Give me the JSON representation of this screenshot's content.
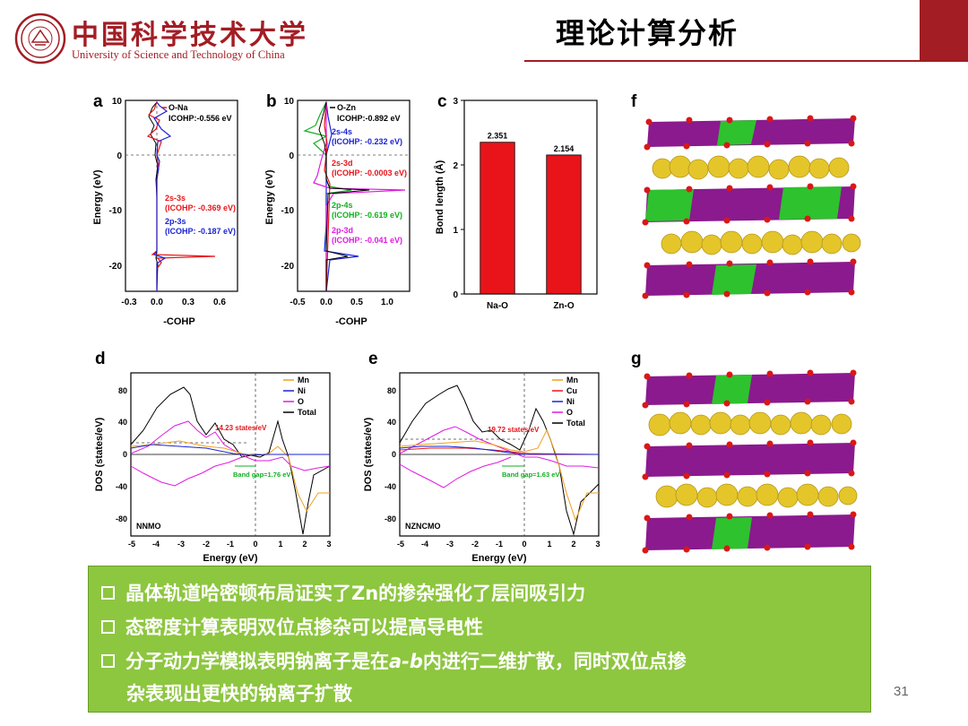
{
  "header": {
    "page_title": "理论计算分析",
    "logo_cn": "中国科学技术大学",
    "logo_en": "University of Science and Technology of China",
    "accent_color": "#a31d24"
  },
  "panels": {
    "a": {
      "letter": "a",
      "legend": "O-Na",
      "icohp": "ICOHP:-0.556 eV",
      "ann1_title": "2s-3s",
      "ann1_val": "(ICOHP: -0.369 eV)",
      "ann2_title": "2p-3s",
      "ann2_val": "(ICOHP: -0.187 eV)",
      "ylabel": "Energy (eV)",
      "xlabel": "-COHP",
      "xticks": [
        "-0.3",
        "0.0",
        "0.3",
        "0.6"
      ],
      "yticks": [
        "10",
        "0",
        "-10",
        "-20"
      ]
    },
    "b": {
      "letter": "b",
      "legend": "O-Zn",
      "icohp": "ICOHP:-0.892 eV",
      "ann1_title": "2s-4s",
      "ann1_val": "(ICOHP: -0.232 eV)",
      "ann2_title": "2s-3d",
      "ann2_val": "(ICOHP: -0.0003 eV)",
      "ann3_title": "2p-4s",
      "ann3_val": "(ICOHP: -0.619 eV)",
      "ann4_title": "2p-3d",
      "ann4_val": "(ICOHP: -0.041 eV)",
      "ylabel": "Energy (eV)",
      "xlabel": "-COHP",
      "xticks": [
        "-0.5",
        "0.0",
        "0.5",
        "1.0"
      ],
      "yticks": [
        "10",
        "0",
        "-10",
        "-20"
      ]
    },
    "c": {
      "letter": "c",
      "ylabel": "Bond length (Å)",
      "yticks": [
        "0",
        "1",
        "2",
        "3"
      ]
    },
    "d": {
      "letter": "d",
      "legend": [
        "Mn",
        "Ni",
        "O",
        "Total"
      ],
      "annotation": "14.23 states/eV",
      "bandgap": "Band gap=1.76 eV",
      "sample": "NNMO",
      "ylabel": "DOS (states/eV)",
      "xlabel": "Energy (eV)",
      "xticks": [
        "-5",
        "-4",
        "-3",
        "-2",
        "-1",
        "0",
        "1",
        "2",
        "3"
      ],
      "yticks": [
        "80",
        "40",
        "0",
        "-40",
        "-80"
      ]
    },
    "e": {
      "letter": "e",
      "legend": [
        "Mn",
        "Cu",
        "Ni",
        "O",
        "Total"
      ],
      "annotation": "19.72 states/eV",
      "bandgap": "Band gap=1.63 eV",
      "sample": "NZNCMO",
      "ylabel": "DOS (states/eV)",
      "xlabel": "Energy (eV)",
      "xticks": [
        "-5",
        "-4",
        "-3",
        "-2",
        "-1",
        "0",
        "1",
        "2",
        "3"
      ],
      "yticks": [
        "80",
        "40",
        "0",
        "-40",
        "-80"
      ]
    },
    "f": {
      "letter": "f"
    },
    "g": {
      "letter": "g"
    }
  },
  "chart_data": [
    {
      "type": "bar",
      "categories": [
        "Na-O",
        "Zn-O"
      ],
      "values": [
        2.351,
        2.154
      ],
      "data_labels": [
        "2.351",
        "2.154"
      ],
      "ylabel": "Bond length (Å)",
      "ylim": [
        0,
        3
      ],
      "color": "#e8141a"
    }
  ],
  "summary": {
    "bullet1": "晶体轨道哈密顿布局证实了Zn的掺杂强化了层间吸引力",
    "bullet2": "态密度计算表明双位点掺杂可以提高导电性",
    "bullet3_pre": "分子动力学模拟表明钠离子是在",
    "bullet3_ab": "a-b",
    "bullet3_post": "内进行二维扩散，同时双位点掺",
    "bullet3_line2": "杂表现出更快的钠离子扩散"
  },
  "page_number": "31"
}
